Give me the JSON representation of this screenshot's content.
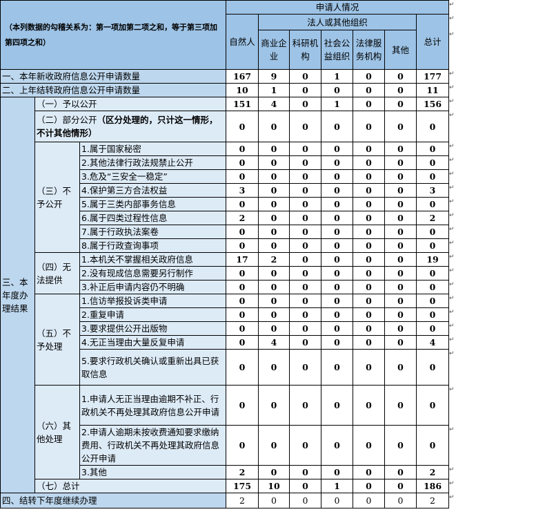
{
  "header": {
    "note": "（本列数据的勾稽关系为：第一项加第二项之和，等于第三项加第四项之和）",
    "applicant": "申请人情况",
    "natural_person": "自然人",
    "legal_org": "法人或其他组织",
    "org_cols": [
      "商业企业",
      "科研机构",
      "社会公益组织",
      "法律服务机构",
      "其他"
    ],
    "total": "总计"
  },
  "top_rows": [
    {
      "label": "一、本年新收政府信息公开申请数量",
      "values": [
        "167",
        "9",
        "0",
        "1",
        "0",
        "0",
        "177"
      ]
    },
    {
      "label": "二、上年结转政府信息公开申请数量",
      "values": [
        "10",
        "1",
        "0",
        "0",
        "0",
        "0",
        "11"
      ]
    }
  ],
  "section3": {
    "label": "三、本年度办理结果",
    "groups": [
      {
        "label": "（一）予以公开",
        "values": [
          "151",
          "4",
          "0",
          "1",
          "0",
          "0",
          "156"
        ]
      },
      {
        "label": "（二）部分公开",
        "note": "（区分处理的，只计这一情形，不计其他情形）",
        "values": [
          "0",
          "0",
          "0",
          "0",
          "0",
          "0",
          "0"
        ]
      },
      {
        "label": "（三）不予公开",
        "items": [
          {
            "label": "1.属于国家秘密",
            "values": [
              "0",
              "0",
              "0",
              "0",
              "0",
              "0",
              "0"
            ]
          },
          {
            "label": "2.其他法律行政法规禁止公开",
            "values": [
              "0",
              "0",
              "0",
              "0",
              "0",
              "0",
              "0"
            ]
          },
          {
            "label": "3.危及“三安全一稳定”",
            "values": [
              "0",
              "0",
              "0",
              "0",
              "0",
              "0",
              "0"
            ]
          },
          {
            "label": "4.保护第三方合法权益",
            "values": [
              "3",
              "0",
              "0",
              "0",
              "0",
              "0",
              "3"
            ]
          },
          {
            "label": "5.属于三类内部事务信息",
            "values": [
              "0",
              "0",
              "0",
              "0",
              "0",
              "0",
              "0"
            ]
          },
          {
            "label": "6.属于四类过程性信息",
            "values": [
              "2",
              "0",
              "0",
              "0",
              "0",
              "0",
              "2"
            ]
          },
          {
            "label": "7.属于行政执法案卷",
            "values": [
              "0",
              "0",
              "0",
              "0",
              "0",
              "0",
              "0"
            ]
          },
          {
            "label": "8.属于行政查询事项",
            "values": [
              "0",
              "0",
              "0",
              "0",
              "0",
              "0",
              "0"
            ]
          }
        ]
      },
      {
        "label": "（四）无法提供",
        "items": [
          {
            "label": "1.本机关不掌握相关政府信息",
            "values": [
              "17",
              "2",
              "0",
              "0",
              "0",
              "0",
              "19"
            ]
          },
          {
            "label": "2.没有现成信息需要另行制作",
            "values": [
              "0",
              "0",
              "0",
              "0",
              "0",
              "0",
              "0"
            ]
          },
          {
            "label": "3.补正后申请内容仍不明确",
            "values": [
              "0",
              "0",
              "0",
              "0",
              "0",
              "0",
              "0"
            ]
          }
        ]
      },
      {
        "label": "（五）不予处理",
        "items": [
          {
            "label": "1.信访举报投诉类申请",
            "values": [
              "0",
              "0",
              "0",
              "0",
              "0",
              "0",
              "0"
            ]
          },
          {
            "label": "2.重复申请",
            "values": [
              "0",
              "0",
              "0",
              "0",
              "0",
              "0",
              "0"
            ]
          },
          {
            "label": "3.要求提供公开出版物",
            "values": [
              "0",
              "0",
              "0",
              "0",
              "0",
              "0",
              "0"
            ]
          },
          {
            "label": "4.无正当理由大量反复申请",
            "values": [
              "0",
              "4",
              "0",
              "0",
              "0",
              "0",
              "4"
            ]
          },
          {
            "label": "5.要求行政机关确认或重新出具已获取信息",
            "values": [
              "0",
              "0",
              "0",
              "0",
              "0",
              "0",
              "0"
            ]
          }
        ]
      },
      {
        "label": "（六）其他处理",
        "items": [
          {
            "label": "1.申请人无正当理由逾期不补正、行政机关不再处理其政府信息公开申请",
            "values": [
              "0",
              "0",
              "0",
              "0",
              "0",
              "0",
              "0"
            ]
          },
          {
            "label": "2.申请人逾期未按收费通知要求缴纳费用、行政机关不再处理其政府信息公开申请",
            "values": [
              "0",
              "0",
              "0",
              "0",
              "0",
              "0",
              "0"
            ]
          },
          {
            "label": "3.其他",
            "values": [
              "2",
              "0",
              "0",
              "0",
              "0",
              "0",
              "2"
            ]
          }
        ]
      },
      {
        "label": "（七）总计",
        "values": [
          "175",
          "10",
          "0",
          "1",
          "0",
          "0",
          "186"
        ]
      }
    ]
  },
  "bottom_row": {
    "label": "四、结转下年度继续办理",
    "values": [
      "2",
      "0",
      "0",
      "0",
      "0",
      "0",
      "2"
    ]
  },
  "colors": {
    "header": "#9dc3e6",
    "label": "#bdd7ee",
    "sublabel": "#ddebf7"
  }
}
